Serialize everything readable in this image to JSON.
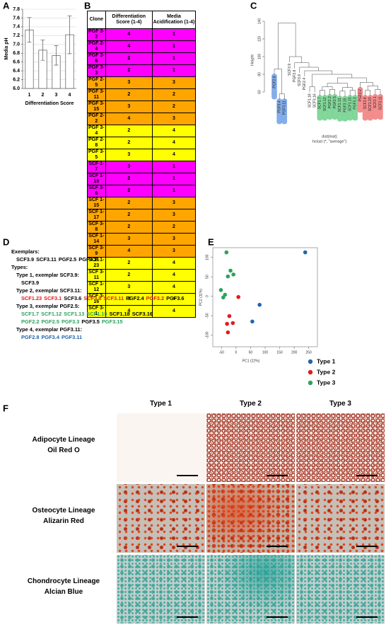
{
  "panel_labels": [
    "A",
    "B",
    "C",
    "D",
    "E",
    "F"
  ],
  "chart_data": [
    {
      "type": "bar",
      "ylabel": "Media pH",
      "xlabel": "Differentiation Score",
      "categories": [
        "1",
        "2",
        "3",
        "4"
      ],
      "values": [
        7.33,
        6.87,
        6.75,
        7.22
      ],
      "errors": [
        0.28,
        0.23,
        0.22,
        0.43
      ],
      "color": "#ffffff",
      "ylim": [
        6.0,
        7.8
      ],
      "yticks": [
        {
          "value": 6,
          "label": "6.0"
        },
        6.2,
        6.4,
        6.6,
        6.8,
        {
          "value": 7,
          "label": "7.0"
        },
        7.2,
        7.4,
        7.6,
        7.8
      ],
      "grid": true
    },
    {
      "type": "dendrogram",
      "ylabel": "Height",
      "xlabel": "dist(mat)",
      "caption": "hclust (*, \"average\")",
      "ylim": [
        45,
        150
      ],
      "yticks": [
        60,
        80,
        100,
        120,
        140
      ],
      "leaves": [
        {
          "label": "PGF2.8",
          "color": "#6f9fe6"
        },
        {
          "label": "PGF3.4",
          "color": "#6f9fe6"
        },
        {
          "label": "PGF3.11",
          "color": "#6f9fe6"
        },
        {
          "label": "SCF3.9"
        },
        {
          "label": "PGF3.6"
        },
        {
          "label": "SCF3.6"
        },
        {
          "label": "PGF2.4"
        },
        {
          "label": "SCF1.18"
        },
        {
          "label": "SCF3.16"
        },
        {
          "label": "SCF1.7",
          "color": "#6fd08a"
        },
        {
          "label": "SCF1.12",
          "color": "#6fd08a"
        },
        {
          "label": "PGF2.2",
          "color": "#6fd08a"
        },
        {
          "label": "PGF2.5",
          "color": "#6fd08a"
        },
        {
          "label": "SCF1.13",
          "color": "#6fd08a"
        },
        {
          "label": "PGF3.15",
          "color": "#6fd08a"
        },
        {
          "label": "SCF1.15",
          "color": "#6fd08a"
        },
        {
          "label": "PGF3.3",
          "color": "#6fd08a"
        },
        {
          "label": "PGF3.2",
          "color": "#f27a7a"
        },
        {
          "label": "SCF3.8",
          "color": "#f27a7a"
        },
        {
          "label": "SCF1.23",
          "color": "#f27a7a"
        },
        {
          "label": "SCF3.1",
          "color": "#f27a7a"
        },
        {
          "label": "SCF3.11",
          "color": "#f27a7a"
        }
      ],
      "merges": [
        [
          -2,
          -3,
          58
        ],
        [
          -1,
          1,
          86
        ],
        [
          -10,
          -11,
          62
        ],
        [
          -12,
          -13,
          63
        ],
        [
          -14,
          -15,
          61
        ],
        [
          -16,
          -17,
          62
        ],
        [
          3,
          4,
          66
        ],
        [
          5,
          6,
          65
        ],
        [
          7,
          8,
          70
        ],
        [
          -19,
          -20,
          62
        ],
        [
          -21,
          -22,
          63
        ],
        [
          10,
          11,
          67
        ],
        [
          -18,
          12,
          71
        ],
        [
          9,
          13,
          76
        ],
        [
          -8,
          -9,
          66
        ],
        [
          15,
          14,
          80
        ],
        [
          -7,
          16,
          84
        ],
        [
          -6,
          17,
          88
        ],
        [
          -5,
          18,
          93
        ],
        [
          -4,
          19,
          100
        ],
        [
          2,
          20,
          138
        ]
      ]
    },
    {
      "type": "scatter",
      "xlabel": "PC1 (22%)",
      "ylabel": "PC2 (11%)",
      "xlim": [
        -80,
        280
      ],
      "ylim": [
        -130,
        125
      ],
      "xticks": [
        -50,
        0,
        50,
        100,
        150,
        200,
        250
      ],
      "yticks": [
        -100,
        -50,
        0,
        50,
        100
      ],
      "series": [
        {
          "name": "Type 1",
          "color": "#2166ac",
          "x": [
            238,
            81,
            56
          ],
          "y": [
            113,
            -22,
            -65
          ]
        },
        {
          "name": "Type 2",
          "color": "#e41a1c",
          "x": [
            8,
            -23,
            -31,
            -11,
            -28
          ],
          "y": [
            -2,
            -51,
            -71,
            -69,
            -93
          ]
        },
        {
          "name": "Type 3",
          "color": "#2ca25f",
          "x": [
            -33,
            -19,
            -9,
            -28,
            -52,
            -38,
            -44
          ],
          "y": [
            113,
            66,
            56,
            51,
            16,
            4,
            -3
          ]
        }
      ]
    }
  ],
  "table": {
    "header": [
      "Clone",
      "Differentiation Score (1-4)",
      "Media Acidification (1-4)"
    ],
    "rows": [
      {
        "cells": [
          "PGF 3-2",
          "4",
          "1"
        ],
        "fill": "#ff00ff"
      },
      {
        "cells": [
          "PGF 2-4",
          "4",
          "1"
        ],
        "fill": "#ff00ff"
      },
      {
        "cells": [
          "PGF 3-6",
          "2",
          "1"
        ],
        "fill": "#ff00ff"
      },
      {
        "cells": [
          "PGF 3-3",
          "2",
          "1"
        ],
        "fill": "#ff00ff"
      },
      {
        "cells": [
          "PGF 2-5",
          "3",
          "3"
        ],
        "fill": "#ffa500"
      },
      {
        "cells": [
          "PGF 3-11",
          "2",
          "2"
        ],
        "fill": "#ffa500"
      },
      {
        "cells": [
          "PGF 3-15",
          "3",
          "2"
        ],
        "fill": "#ffa500"
      },
      {
        "cells": [
          "PGF 2-2",
          "4",
          "3"
        ],
        "fill": "#ffa500"
      },
      {
        "cells": [
          "PGF 3-4",
          "2",
          "4"
        ],
        "fill": "#ffff00"
      },
      {
        "cells": [
          "PGF 2-8",
          "2",
          "4"
        ],
        "fill": "#ffff00"
      },
      {
        "cells": [
          "PGF 3-5",
          "3",
          "4"
        ],
        "fill": "#ffff00"
      },
      {
        "cells": [
          "SCF 1-7",
          "3",
          "1"
        ],
        "fill": "#ff00ff"
      },
      {
        "cells": [
          "SCF 1-18",
          "2",
          "1"
        ],
        "fill": "#ff00ff"
      },
      {
        "cells": [
          "SCF 3-6",
          "2",
          "1"
        ],
        "fill": "#ff00ff"
      },
      {
        "cells": [
          "SCF 1-15",
          "2",
          "3"
        ],
        "fill": "#ffa500"
      },
      {
        "cells": [
          "SCF 1-17",
          "2",
          "3"
        ],
        "fill": "#ffa500"
      },
      {
        "cells": [
          "SCF 3-8",
          "2",
          "2"
        ],
        "fill": "#ffa500"
      },
      {
        "cells": [
          "SCF 1-14",
          "3",
          "3"
        ],
        "fill": "#ffa500"
      },
      {
        "cells": [
          "SCF 3-9",
          "4",
          "3"
        ],
        "fill": "#ffa500"
      },
      {
        "cells": [
          "SCF 1-23",
          "2",
          "4"
        ],
        "fill": "#ffff00"
      },
      {
        "cells": [
          "SCF 3-11",
          "2",
          "4"
        ],
        "fill": "#ffff00"
      },
      {
        "cells": [
          "SCF 1-12",
          "3",
          "4"
        ],
        "fill": "#ffff00"
      },
      {
        "cells": [
          "SCF 3-16",
          "3",
          "4"
        ],
        "fill": "#ffff00"
      },
      {
        "cells": [
          "SCF 3-1",
          "4",
          "4"
        ],
        "fill": "#ffff00"
      }
    ]
  },
  "text_block": {
    "exemplars": {
      "heading": "Exemplars:",
      "items": [
        "SCF3.9",
        "SCF3.11",
        "PGF2.5",
        "PGF3.11"
      ]
    },
    "types": {
      "heading": "Types:",
      "groups": [
        {
          "heading": "Type 1, exemplar SCF3.9:",
          "lines": [
            [
              {
                "text": "SCF3.9",
                "color": "#000000"
              }
            ]
          ]
        },
        {
          "heading": "Type 2, exemplar SCF3.11:",
          "lines": [
            [
              {
                "text": "SCF1.23",
                "color": "#e41a1c"
              },
              {
                "text": "SCF3.1",
                "color": "#e41a1c"
              },
              {
                "text": "SCF3.6",
                "color": "#000000"
              },
              {
                "text": "SCF3.8",
                "color": "#e41a1c"
              },
              {
                "text": "SCF3.11",
                "color": "#e41a1c"
              },
              {
                "text": "PGF2.4",
                "color": "#000000"
              },
              {
                "text": "PGF3.2",
                "color": "#e41a1c"
              },
              {
                "text": "PGF3.6",
                "color": "#000000"
              }
            ]
          ]
        },
        {
          "heading": "Type 3, exemplar PGF2.5:",
          "lines": [
            [
              {
                "text": "SCF1.7",
                "color": "#2ca25f"
              },
              {
                "text": "SCF1.12",
                "color": "#2ca25f"
              },
              {
                "text": "SCF1.13",
                "color": "#2ca25f"
              },
              {
                "text": "SCF1.15",
                "color": "#2ca25f"
              },
              {
                "text": "SCF1.18",
                "color": "#000000"
              },
              {
                "text": "SCF3.16",
                "color": "#000000"
              }
            ],
            [
              {
                "text": "PGF2.2",
                "color": "#2ca25f"
              },
              {
                "text": "PGF2.5",
                "color": "#2ca25f"
              },
              {
                "text": "PGF3.3",
                "color": "#2ca25f"
              },
              {
                "text": "PGF3.5",
                "color": "#000000"
              },
              {
                "text": "PGF3.15",
                "color": "#2ca25f"
              }
            ]
          ]
        },
        {
          "heading": "Type 4, exemplar PGF3.11:",
          "lines": [
            [
              {
                "text": "PGF2.8",
                "color": "#2166ac"
              },
              {
                "text": "PGF3.4",
                "color": "#2166ac"
              },
              {
                "text": "PGF3.11",
                "color": "#2166ac"
              }
            ]
          ]
        }
      ]
    }
  },
  "image_grid": {
    "columns": [
      "Type 1",
      "Type 2",
      "Type 3"
    ],
    "rows": [
      {
        "lineage": "Adipocyte Lineage",
        "stain": "Oil Red O"
      },
      {
        "lineage": "Osteocyte Lineage",
        "stain": "Alizarin Red"
      },
      {
        "lineage": "Chondrocyte Lineage",
        "stain": "Alcian Blue"
      }
    ]
  }
}
